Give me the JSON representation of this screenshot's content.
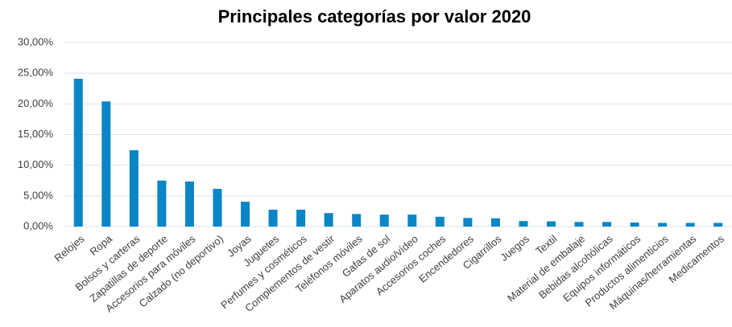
{
  "chart_data": {
    "type": "bar",
    "title": "Principales categorías por valor 2020",
    "categories": [
      "Relojes",
      "Ropa",
      "Bolsos y carteras",
      "Zapatillas de deporte",
      "Accesorios para móviles",
      "Calzado (no deportivo)",
      "Joyas",
      "Juguetes",
      "Perfumes y cosméticos",
      "Complementos de vestir",
      "Teléfonos móviles",
      "Gafas de sol",
      "Aparatos audio/vídeo",
      "Accesorios coches",
      "Encendedores",
      "Cigarrillos",
      "Juegos",
      "Textil",
      "Material de embalaje",
      "Bebidas alcohólicas",
      "Equipos informáticos",
      "Productos alimenticios",
      "Máquinas/herramientas",
      "Medicamentos"
    ],
    "values": [
      24.1,
      20.4,
      12.45,
      7.5,
      7.35,
      6.15,
      4.05,
      2.75,
      2.75,
      2.2,
      2.05,
      1.95,
      1.95,
      1.6,
      1.4,
      1.35,
      0.9,
      0.85,
      0.75,
      0.75,
      0.65,
      0.6,
      0.6,
      0.6
    ],
    "color": "#0a85c6",
    "ylim": [
      0,
      30
    ],
    "yticks": [
      {
        "value": 0,
        "label": "0,00%"
      },
      {
        "value": 5,
        "label": "5,00%"
      },
      {
        "value": 10,
        "label": "10,00%"
      },
      {
        "value": 15,
        "label": "15,00%"
      },
      {
        "value": 20,
        "label": "20,00%"
      },
      {
        "value": 25,
        "label": "25,00%"
      },
      {
        "value": 30,
        "label": "30,00%"
      }
    ],
    "grid": true
  }
}
